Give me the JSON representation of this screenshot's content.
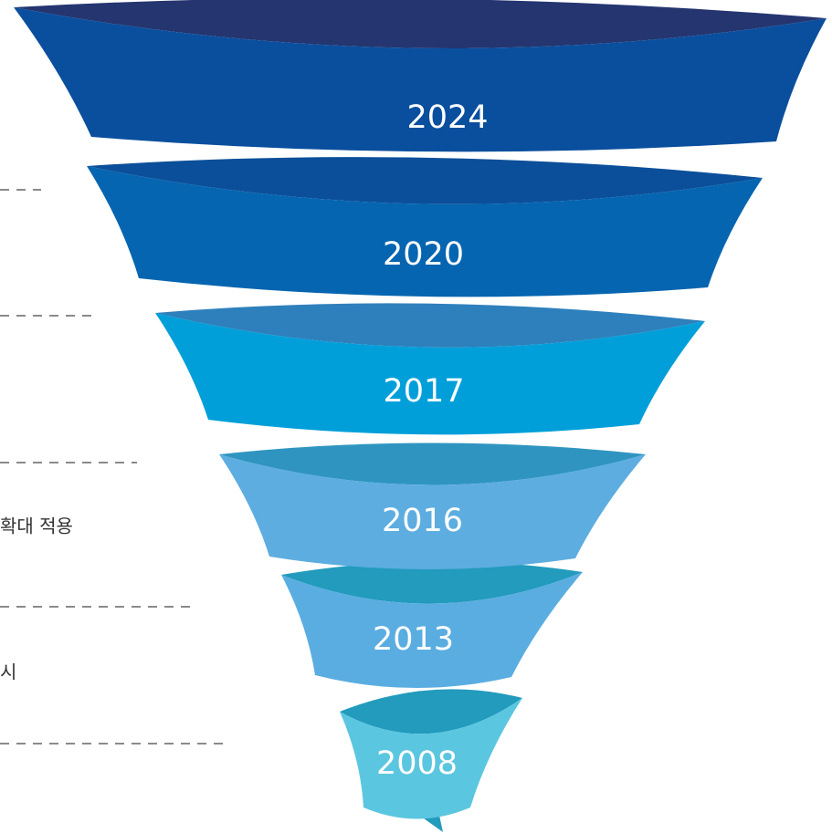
{
  "tiers": [
    {
      "label": "2024"
    },
    {
      "label": "2020"
    },
    {
      "label": "2017"
    },
    {
      "label": "2016"
    },
    {
      "label": "2013"
    },
    {
      "label": "2008"
    }
  ],
  "notes": [
    "확대 적용",
    "시"
  ]
}
